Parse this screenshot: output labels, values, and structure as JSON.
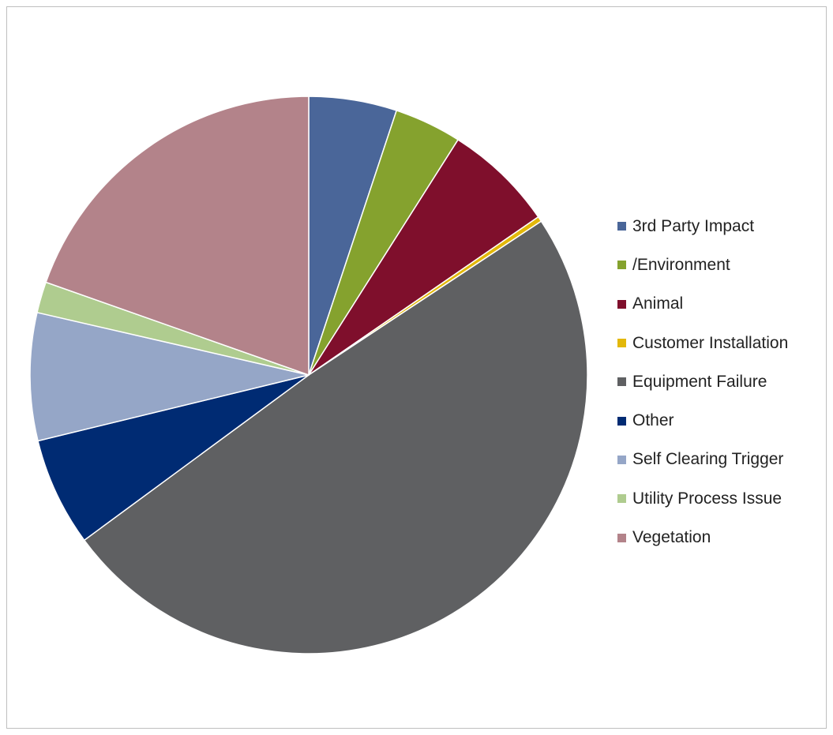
{
  "chart_data": {
    "type": "pie",
    "title": "",
    "legend_position": "right",
    "categories": [
      "3rd Party Impact",
      "/Environment",
      "Animal",
      "Customer Installation",
      "Equipment Failure",
      "Other",
      "Self Clearing Trigger",
      "Utility Process Issue",
      "Vegetation"
    ],
    "values": [
      5.1,
      3.9,
      6.4,
      0.3,
      49.2,
      6.3,
      7.4,
      1.8,
      19.6
    ],
    "colors": [
      "#4a6699",
      "#85a22e",
      "#7f0f2c",
      "#e3b80a",
      "#5f6062",
      "#002b73",
      "#95a6c7",
      "#afcc8f",
      "#b3838a"
    ]
  }
}
